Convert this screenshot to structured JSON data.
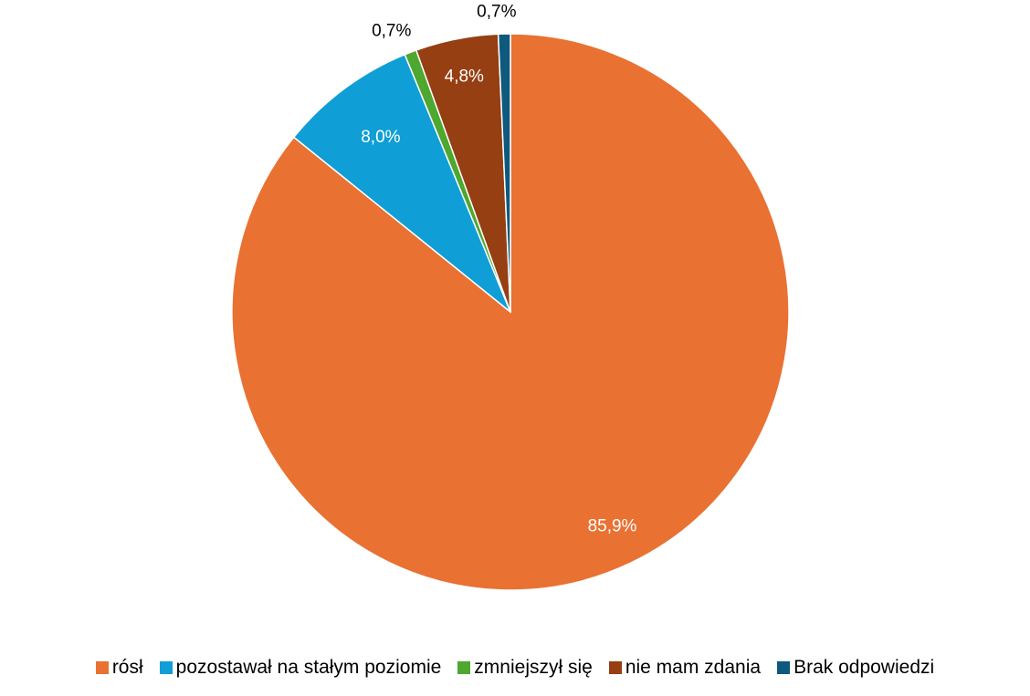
{
  "chart_data": {
    "type": "pie",
    "categories": [
      "rósł",
      "pozostawał na stałym poziomie",
      "zmniejszył się",
      "nie mam zdania",
      "Brak odpowiedzi"
    ],
    "values": [
      85.9,
      8.0,
      0.7,
      4.8,
      0.7
    ],
    "labels": [
      "85,9%",
      "8,0%",
      "0,7%",
      "4,8%",
      "0,7%"
    ],
    "colors": [
      "#E97132",
      "#0F9ED5",
      "#4EA72E",
      "#953F13",
      "#0E5A7E"
    ],
    "start_angle_deg": 0,
    "direction": "clockwise",
    "legend_position": "bottom"
  }
}
